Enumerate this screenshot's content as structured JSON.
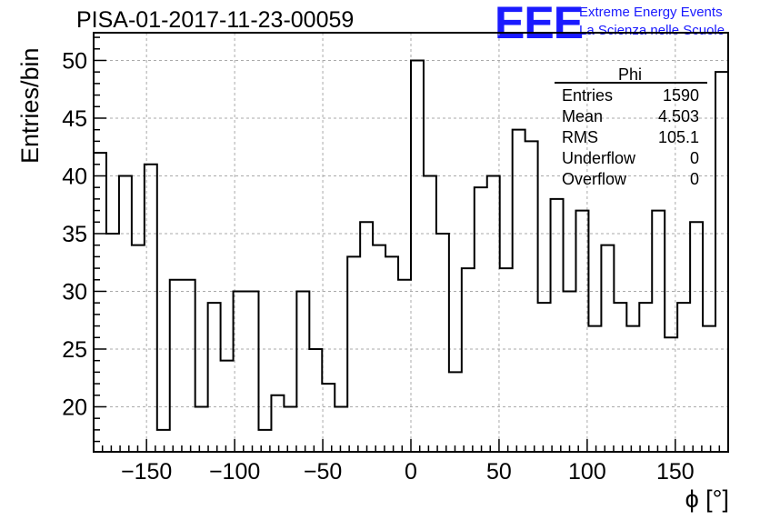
{
  "header": {
    "title": "PISA-01-2017-11-23-00059",
    "logo_text": "EEE",
    "logo_line1": "Extreme Energy Events",
    "logo_line2": "La Scienza nelle Scuole",
    "logo_color": "#1a1aff"
  },
  "stats_box": {
    "title": "Phi",
    "rows": [
      {
        "label": "Entries",
        "value": "1590"
      },
      {
        "label": "Mean",
        "value": "4.503"
      },
      {
        "label": "RMS",
        "value": "105.1"
      },
      {
        "label": "Underflow",
        "value": "0"
      },
      {
        "label": "Overflow",
        "value": "0"
      }
    ]
  },
  "chart_data": {
    "type": "bar",
    "histogram_style": "step",
    "title": "PISA-01-2017-11-23-00059",
    "xlabel": "ϕ [°]",
    "ylabel": "Entries/bin",
    "xlim": [
      -180,
      180
    ],
    "ylim": [
      16.1,
      52.4
    ],
    "bin_width": 7.2,
    "x_ticks": [
      -150,
      -100,
      -50,
      0,
      50,
      100,
      150
    ],
    "x_tick_labels": [
      "−150",
      "−100",
      "−50",
      "0",
      "50",
      "100",
      "150"
    ],
    "y_ticks": [
      20,
      25,
      30,
      35,
      40,
      45,
      50
    ],
    "grid": true,
    "values": [
      42,
      35,
      40,
      34,
      41,
      18,
      31,
      31,
      20,
      29,
      24,
      30,
      30,
      18,
      21,
      20,
      30,
      25,
      22,
      20,
      33,
      36,
      34,
      33,
      31,
      50,
      40,
      35,
      23,
      32,
      39,
      40,
      32,
      44,
      43,
      29,
      38,
      30,
      37,
      27,
      34,
      29,
      27,
      29,
      37,
      26,
      29,
      36,
      27,
      49
    ]
  }
}
